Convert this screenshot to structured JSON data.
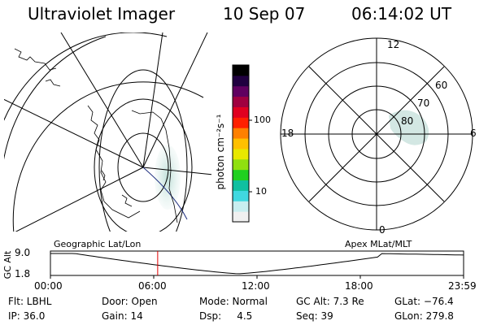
{
  "header": {
    "instrument": "Ultraviolet Imager",
    "date": "10 Sep 07",
    "time": "06:14:02 UT"
  },
  "colorbar": {
    "unit_label": "photon cm⁻²s⁻¹",
    "ticks": [
      "100",
      "10"
    ],
    "colors": [
      "#f0f0f0",
      "#c8eef0",
      "#40d8e0",
      "#10c0a0",
      "#20d020",
      "#90e010",
      "#e8e800",
      "#ffc000",
      "#ff8000",
      "#ff2000",
      "#e00020",
      "#a00040",
      "#600060",
      "#200040",
      "#000000"
    ]
  },
  "polar_plot": {
    "mlt_labels": {
      "top": "12",
      "right": "6",
      "bottom": "0",
      "left": "18"
    },
    "lat_labels": [
      "60",
      "70",
      "80"
    ]
  },
  "altitude_plot": {
    "left_label": "Geographic Lat/Lon",
    "right_label": "Apex MLat/MLT",
    "y_axis_label": "GC Alt",
    "y_ticks": [
      "9.0",
      "1.8"
    ],
    "x_ticks": [
      "00:00",
      "06:00",
      "12:00",
      "18:00",
      "23:59"
    ],
    "current_time_hours": 6.23,
    "marker_color": "#e00000"
  },
  "status": {
    "filter": "Flt: LBHL",
    "door": "Door: Open",
    "mode": "Mode: Normal",
    "gc_alt": "GC Alt: 7.3 Re",
    "glat": "GLat: −76.4",
    "ip": "IP: 36.0",
    "gain": "Gain: 14",
    "dsp": "Dsp:     4.5",
    "seq": "Seq: 39",
    "glon": "GLon: 279.8"
  }
}
